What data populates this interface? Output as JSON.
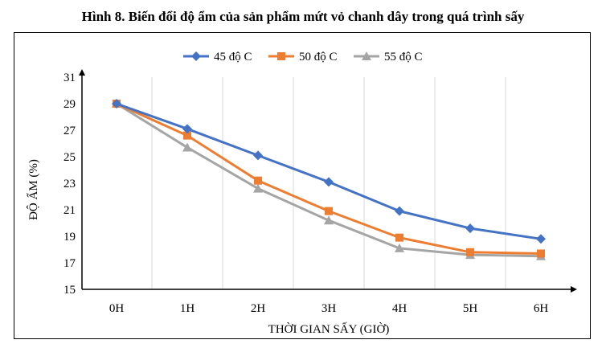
{
  "title": "Hình 8. Biến đổi độ ẩm của sản phẩm mứt vỏ chanh dây trong quá trình sấy",
  "chart_data": {
    "type": "line",
    "categories": [
      "0H",
      "1H",
      "2H",
      "3H",
      "4H",
      "5H",
      "6H"
    ],
    "series": [
      {
        "name": "45 độ C",
        "values": [
          29.0,
          27.1,
          25.1,
          23.1,
          20.9,
          19.6,
          18.8
        ],
        "color": "#4472C4",
        "marker": "diamond"
      },
      {
        "name": "50 độ C",
        "values": [
          29.0,
          26.6,
          23.2,
          20.9,
          18.9,
          17.8,
          17.7
        ],
        "color": "#ED7D31",
        "marker": "square"
      },
      {
        "name": "55 độ C",
        "values": [
          29.0,
          25.7,
          22.6,
          20.2,
          18.1,
          17.6,
          17.5
        ],
        "color": "#A5A5A5",
        "marker": "triangle"
      }
    ],
    "xlabel": "THỜI GIAN SẤY (GIỜ)",
    "ylabel": "ĐỘ ẨM (%)",
    "ylim": [
      15,
      31
    ],
    "yticks": [
      15,
      17,
      19,
      21,
      23,
      25,
      27,
      29,
      31
    ],
    "grid": "vertical",
    "legend": "top-center"
  }
}
